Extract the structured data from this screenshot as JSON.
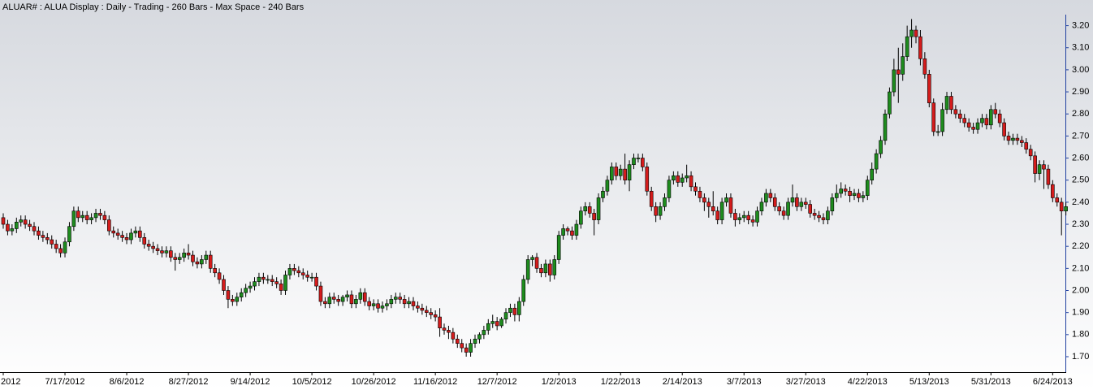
{
  "chart_data": {
    "type": "candlestick",
    "title": "ALUAR# : ALUA Display :  Daily  - Trading - 260 Bars -  Max Space - 240 Bars",
    "categories": [
      "2012",
      null,
      null,
      null,
      null,
      null,
      null,
      null,
      null,
      null,
      null,
      null,
      null,
      null,
      "7/17/2012",
      null,
      null,
      null,
      null,
      null,
      null,
      null,
      null,
      null,
      null,
      null,
      null,
      null,
      "8/6/2012",
      null,
      null,
      null,
      null,
      null,
      null,
      null,
      null,
      null,
      null,
      null,
      null,
      null,
      "8/27/2012",
      null,
      null,
      null,
      null,
      null,
      null,
      null,
      null,
      null,
      null,
      null,
      null,
      null,
      "9/14/2012",
      null,
      null,
      null,
      null,
      null,
      null,
      null,
      null,
      null,
      null,
      null,
      null,
      null,
      "10/5/2012",
      null,
      null,
      null,
      null,
      null,
      null,
      null,
      null,
      null,
      null,
      null,
      null,
      null,
      "10/26/2012",
      null,
      null,
      null,
      null,
      null,
      null,
      null,
      null,
      null,
      null,
      null,
      null,
      null,
      "11/16/2012",
      null,
      null,
      null,
      null,
      null,
      null,
      null,
      null,
      null,
      null,
      null,
      null,
      null,
      "12/7/2012",
      null,
      null,
      null,
      null,
      null,
      null,
      null,
      null,
      null,
      null,
      null,
      null,
      null,
      "1/2/2013",
      null,
      null,
      null,
      null,
      null,
      null,
      null,
      null,
      null,
      null,
      null,
      null,
      null,
      "1/22/2013",
      null,
      null,
      null,
      null,
      null,
      null,
      null,
      null,
      null,
      null,
      null,
      null,
      null,
      "2/14/2013",
      null,
      null,
      null,
      null,
      null,
      null,
      null,
      null,
      null,
      null,
      null,
      null,
      null,
      "3/7/2013",
      null,
      null,
      null,
      null,
      null,
      null,
      null,
      null,
      null,
      null,
      null,
      null,
      null,
      "3/27/2013",
      null,
      null,
      null,
      null,
      null,
      null,
      null,
      null,
      null,
      null,
      null,
      null,
      null,
      "4/22/2013",
      null,
      null,
      null,
      null,
      null,
      null,
      null,
      null,
      null,
      null,
      null,
      null,
      null,
      "5/13/2013",
      null,
      null,
      null,
      null,
      null,
      null,
      null,
      null,
      null,
      null,
      null,
      null,
      null,
      "5/31/2013",
      null,
      null,
      null,
      null,
      null,
      null,
      null,
      null,
      null,
      null,
      null,
      null,
      null,
      "6/24/2013",
      null,
      null,
      null
    ],
    "open": [
      2.33,
      2.3,
      2.27,
      2.28,
      2.31,
      2.32,
      2.3,
      2.29,
      2.27,
      2.25,
      2.24,
      2.23,
      2.21,
      2.19,
      2.17,
      2.22,
      2.29,
      2.36,
      2.33,
      2.34,
      2.32,
      2.33,
      2.35,
      2.34,
      2.32,
      2.27,
      2.26,
      2.25,
      2.24,
      2.23,
      2.26,
      2.27,
      2.24,
      2.21,
      2.2,
      2.19,
      2.18,
      2.17,
      2.18,
      2.15,
      2.14,
      2.15,
      2.17,
      2.16,
      2.13,
      2.12,
      2.14,
      2.16,
      2.1,
      2.08,
      2.05,
      2.0,
      1.96,
      1.95,
      1.97,
      1.99,
      2.01,
      2.02,
      2.04,
      2.06,
      2.05,
      2.05,
      2.04,
      2.03,
      2.0,
      2.07,
      2.1,
      2.09,
      2.08,
      2.07,
      2.06,
      2.06,
      2.02,
      1.95,
      1.94,
      1.97,
      1.96,
      1.95,
      1.97,
      1.98,
      1.94,
      1.96,
      1.99,
      1.95,
      1.93,
      1.94,
      1.92,
      1.93,
      1.94,
      1.96,
      1.97,
      1.96,
      1.94,
      1.95,
      1.93,
      1.92,
      1.91,
      1.9,
      1.89,
      1.88,
      1.83,
      1.82,
      1.81,
      1.78,
      1.76,
      1.74,
      1.72,
      1.76,
      1.78,
      1.8,
      1.82,
      1.85,
      1.86,
      1.84,
      1.87,
      1.9,
      1.92,
      1.89,
      1.95,
      2.05,
      2.14,
      2.15,
      2.1,
      2.08,
      2.12,
      2.07,
      2.14,
      2.25,
      2.28,
      2.27,
      2.25,
      2.3,
      2.36,
      2.38,
      2.35,
      2.32,
      2.42,
      2.45,
      2.5,
      2.56,
      2.52,
      2.55,
      2.5,
      2.57,
      2.6,
      2.6,
      2.56,
      2.45,
      2.38,
      2.34,
      2.38,
      2.42,
      2.5,
      2.52,
      2.49,
      2.51,
      2.52,
      2.47,
      2.45,
      2.42,
      2.4,
      2.38,
      2.36,
      2.32,
      2.4,
      2.42,
      2.35,
      2.32,
      2.33,
      2.34,
      2.32,
      2.31,
      2.36,
      2.4,
      2.44,
      2.42,
      2.38,
      2.36,
      2.34,
      2.4,
      2.42,
      2.38,
      2.4,
      2.39,
      2.35,
      2.34,
      2.33,
      2.32,
      2.36,
      2.42,
      2.44,
      2.46,
      2.45,
      2.43,
      2.44,
      2.42,
      2.43,
      2.5,
      2.55,
      2.62,
      2.68,
      2.8,
      2.9,
      3.0,
      2.98,
      3.06,
      3.15,
      3.18,
      3.15,
      3.05,
      2.98,
      2.85,
      2.72,
      2.72,
      2.82,
      2.88,
      2.82,
      2.8,
      2.78,
      2.76,
      2.74,
      2.73,
      2.76,
      2.78,
      2.75,
      2.82,
      2.8,
      2.76,
      2.7,
      2.68,
      2.69,
      2.68,
      2.67,
      2.64,
      2.61,
      2.53,
      2.57,
      2.55,
      2.48,
      2.42,
      2.4,
      2.36
    ],
    "high": [
      2.35,
      2.32,
      2.3,
      2.33,
      2.34,
      2.34,
      2.32,
      2.31,
      2.29,
      2.27,
      2.26,
      2.25,
      2.23,
      2.21,
      2.24,
      2.31,
      2.38,
      2.38,
      2.36,
      2.36,
      2.35,
      2.37,
      2.37,
      2.36,
      2.34,
      2.29,
      2.28,
      2.27,
      2.26,
      2.28,
      2.29,
      2.29,
      2.26,
      2.23,
      2.22,
      2.21,
      2.2,
      2.2,
      2.2,
      2.17,
      2.17,
      2.19,
      2.21,
      2.18,
      2.15,
      2.16,
      2.18,
      2.18,
      2.12,
      2.1,
      2.07,
      2.02,
      1.98,
      1.99,
      2.01,
      2.03,
      2.04,
      2.06,
      2.08,
      2.08,
      2.07,
      2.07,
      2.06,
      2.05,
      2.09,
      2.12,
      2.12,
      2.11,
      2.1,
      2.09,
      2.08,
      2.08,
      2.04,
      1.97,
      1.99,
      1.99,
      1.98,
      1.98,
      2.0,
      2.0,
      1.98,
      2.01,
      2.01,
      1.97,
      1.96,
      1.96,
      1.95,
      1.96,
      1.98,
      1.99,
      1.99,
      1.98,
      1.97,
      1.97,
      1.95,
      1.94,
      1.93,
      1.92,
      1.91,
      1.92,
      1.85,
      1.84,
      1.83,
      1.8,
      1.78,
      1.76,
      1.78,
      1.8,
      1.81,
      1.84,
      1.87,
      1.89,
      1.88,
      1.88,
      1.92,
      1.94,
      1.94,
      1.97,
      2.07,
      2.16,
      2.16,
      2.17,
      2.12,
      2.14,
      2.14,
      2.16,
      2.27,
      2.3,
      2.29,
      2.29,
      2.32,
      2.38,
      2.4,
      2.4,
      2.37,
      2.44,
      2.47,
      2.52,
      2.58,
      2.58,
      2.57,
      2.62,
      2.59,
      2.62,
      2.62,
      2.62,
      2.58,
      2.47,
      2.4,
      2.4,
      2.44,
      2.52,
      2.54,
      2.54,
      2.53,
      2.57,
      2.54,
      2.49,
      2.47,
      2.44,
      2.42,
      2.45,
      2.38,
      2.42,
      2.44,
      2.44,
      2.37,
      2.35,
      2.36,
      2.36,
      2.34,
      2.38,
      2.42,
      2.46,
      2.46,
      2.44,
      2.4,
      2.38,
      2.42,
      2.48,
      2.44,
      2.42,
      2.42,
      2.41,
      2.37,
      2.36,
      2.35,
      2.38,
      2.44,
      2.48,
      2.49,
      2.48,
      2.47,
      2.46,
      2.46,
      2.45,
      2.52,
      2.58,
      2.64,
      2.7,
      2.82,
      2.92,
      3.05,
      3.1,
      3.12,
      3.2,
      3.23,
      3.2,
      3.18,
      3.08,
      3.0,
      2.87,
      2.75,
      2.85,
      2.9,
      2.9,
      2.84,
      2.82,
      2.8,
      2.78,
      2.76,
      2.78,
      2.8,
      2.8,
      2.84,
      2.85,
      2.82,
      2.78,
      2.72,
      2.71,
      2.71,
      2.7,
      2.69,
      2.66,
      2.63,
      2.59,
      2.59,
      2.57,
      2.5,
      2.44,
      2.42,
      2.4
    ],
    "low": [
      2.28,
      2.25,
      2.25,
      2.26,
      2.29,
      2.28,
      2.27,
      2.25,
      2.23,
      2.22,
      2.21,
      2.19,
      2.17,
      2.15,
      2.15,
      2.2,
      2.27,
      2.31,
      2.31,
      2.3,
      2.3,
      2.31,
      2.32,
      2.3,
      2.25,
      2.24,
      2.23,
      2.22,
      2.21,
      2.21,
      2.24,
      2.22,
      2.19,
      2.18,
      2.17,
      2.16,
      2.15,
      2.15,
      2.13,
      2.09,
      2.12,
      2.13,
      2.14,
      2.11,
      2.1,
      2.1,
      2.12,
      2.08,
      2.06,
      2.03,
      1.98,
      1.92,
      1.93,
      1.93,
      1.95,
      1.97,
      1.99,
      2.0,
      2.02,
      2.03,
      2.03,
      2.02,
      2.01,
      1.98,
      1.98,
      2.05,
      2.07,
      2.06,
      2.05,
      2.04,
      2.04,
      2.0,
      1.93,
      1.92,
      1.92,
      1.94,
      1.93,
      1.93,
      1.95,
      1.92,
      1.92,
      1.94,
      1.93,
      1.91,
      1.91,
      1.9,
      1.9,
      1.91,
      1.92,
      1.94,
      1.94,
      1.92,
      1.92,
      1.91,
      1.9,
      1.89,
      1.88,
      1.87,
      1.86,
      1.79,
      1.8,
      1.78,
      1.76,
      1.74,
      1.72,
      1.7,
      1.7,
      1.74,
      1.76,
      1.78,
      1.8,
      1.83,
      1.82,
      1.83,
      1.85,
      1.88,
      1.86,
      1.86,
      1.93,
      2.03,
      2.11,
      2.08,
      2.06,
      2.06,
      2.04,
      2.05,
      2.12,
      2.23,
      2.25,
      2.23,
      2.23,
      2.28,
      2.34,
      2.33,
      2.25,
      2.3,
      2.4,
      2.43,
      2.48,
      2.5,
      2.5,
      2.48,
      2.45,
      2.55,
      2.58,
      2.54,
      2.43,
      2.36,
      2.31,
      2.32,
      2.36,
      2.4,
      2.48,
      2.47,
      2.47,
      2.49,
      2.45,
      2.43,
      2.4,
      2.36,
      2.33,
      2.34,
      2.3,
      2.3,
      2.38,
      2.33,
      2.29,
      2.3,
      2.31,
      2.3,
      2.29,
      2.29,
      2.34,
      2.38,
      2.4,
      2.36,
      2.34,
      2.32,
      2.32,
      2.38,
      2.36,
      2.36,
      2.37,
      2.33,
      2.32,
      2.31,
      2.3,
      2.3,
      2.34,
      2.4,
      2.42,
      2.43,
      2.4,
      2.41,
      2.4,
      2.4,
      2.41,
      2.48,
      2.53,
      2.6,
      2.66,
      2.78,
      2.88,
      2.85,
      2.95,
      3.04,
      3.1,
      3.12,
      3.02,
      2.96,
      2.83,
      2.7,
      2.7,
      2.7,
      2.8,
      2.8,
      2.78,
      2.76,
      2.74,
      2.72,
      2.71,
      2.71,
      2.74,
      2.73,
      2.73,
      2.78,
      2.74,
      2.68,
      2.66,
      2.66,
      2.66,
      2.65,
      2.62,
      2.59,
      2.49,
      2.5,
      2.46,
      2.46,
      2.4,
      2.38,
      2.25,
      2.34
    ],
    "close": [
      2.3,
      2.27,
      2.28,
      2.31,
      2.32,
      2.3,
      2.29,
      2.27,
      2.25,
      2.24,
      2.23,
      2.21,
      2.19,
      2.17,
      2.22,
      2.29,
      2.36,
      2.33,
      2.34,
      2.32,
      2.33,
      2.35,
      2.34,
      2.32,
      2.27,
      2.26,
      2.25,
      2.24,
      2.23,
      2.26,
      2.27,
      2.24,
      2.21,
      2.2,
      2.19,
      2.18,
      2.17,
      2.18,
      2.15,
      2.14,
      2.15,
      2.17,
      2.16,
      2.13,
      2.12,
      2.14,
      2.16,
      2.1,
      2.08,
      2.05,
      2.0,
      1.96,
      1.95,
      1.97,
      1.99,
      2.01,
      2.02,
      2.04,
      2.06,
      2.05,
      2.05,
      2.04,
      2.03,
      2.0,
      2.07,
      2.1,
      2.09,
      2.08,
      2.07,
      2.06,
      2.06,
      2.02,
      1.95,
      1.94,
      1.97,
      1.96,
      1.95,
      1.97,
      1.98,
      1.94,
      1.96,
      1.99,
      1.95,
      1.93,
      1.94,
      1.92,
      1.93,
      1.94,
      1.96,
      1.97,
      1.96,
      1.94,
      1.95,
      1.93,
      1.92,
      1.91,
      1.9,
      1.89,
      1.88,
      1.83,
      1.82,
      1.81,
      1.78,
      1.76,
      1.74,
      1.72,
      1.76,
      1.78,
      1.8,
      1.82,
      1.85,
      1.86,
      1.84,
      1.87,
      1.9,
      1.92,
      1.89,
      1.95,
      2.05,
      2.14,
      2.15,
      2.1,
      2.08,
      2.12,
      2.07,
      2.14,
      2.25,
      2.28,
      2.27,
      2.25,
      2.3,
      2.36,
      2.38,
      2.35,
      2.32,
      2.42,
      2.45,
      2.5,
      2.56,
      2.52,
      2.55,
      2.5,
      2.57,
      2.6,
      2.6,
      2.56,
      2.45,
      2.38,
      2.34,
      2.38,
      2.42,
      2.5,
      2.52,
      2.49,
      2.51,
      2.52,
      2.47,
      2.45,
      2.42,
      2.4,
      2.38,
      2.36,
      2.32,
      2.4,
      2.42,
      2.35,
      2.32,
      2.33,
      2.34,
      2.32,
      2.31,
      2.36,
      2.4,
      2.44,
      2.42,
      2.38,
      2.36,
      2.34,
      2.4,
      2.42,
      2.38,
      2.4,
      2.39,
      2.35,
      2.34,
      2.33,
      2.32,
      2.36,
      2.42,
      2.44,
      2.46,
      2.45,
      2.43,
      2.44,
      2.42,
      2.43,
      2.5,
      2.55,
      2.62,
      2.68,
      2.8,
      2.9,
      3.0,
      2.98,
      3.06,
      3.15,
      3.18,
      3.15,
      3.05,
      2.98,
      2.85,
      2.72,
      2.72,
      2.82,
      2.88,
      2.82,
      2.8,
      2.78,
      2.76,
      2.74,
      2.73,
      2.76,
      2.78,
      2.75,
      2.82,
      2.8,
      2.76,
      2.7,
      2.68,
      2.69,
      2.68,
      2.67,
      2.64,
      2.61,
      2.53,
      2.57,
      2.55,
      2.48,
      2.42,
      2.4,
      2.36,
      2.38
    ],
    "up_color": "#1e8c1e",
    "down_color": "#d41c1c",
    "ylim": [
      1.63,
      3.25
    ],
    "yticks": [
      {
        "value": 1.7,
        "label": "1.70"
      },
      {
        "value": 1.8,
        "label": "1.80"
      },
      {
        "value": 1.9,
        "label": "1.90"
      },
      {
        "value": 2.0,
        "label": "2.00"
      },
      {
        "value": 2.1,
        "label": "2.10"
      },
      {
        "value": 2.2,
        "label": "2.20"
      },
      {
        "value": 2.3,
        "label": "2.30"
      },
      {
        "value": 2.4,
        "label": "2.40"
      },
      {
        "value": 2.5,
        "label": "2.50"
      },
      {
        "value": 2.6,
        "label": "2.60"
      },
      {
        "value": 2.7,
        "label": "2.70"
      },
      {
        "value": 2.8,
        "label": "2.80"
      },
      {
        "value": 2.9,
        "label": "2.90"
      },
      {
        "value": 3.0,
        "label": "3.00"
      },
      {
        "value": 3.1,
        "label": "3.10"
      },
      {
        "value": 3.2,
        "label": "3.20"
      }
    ]
  }
}
